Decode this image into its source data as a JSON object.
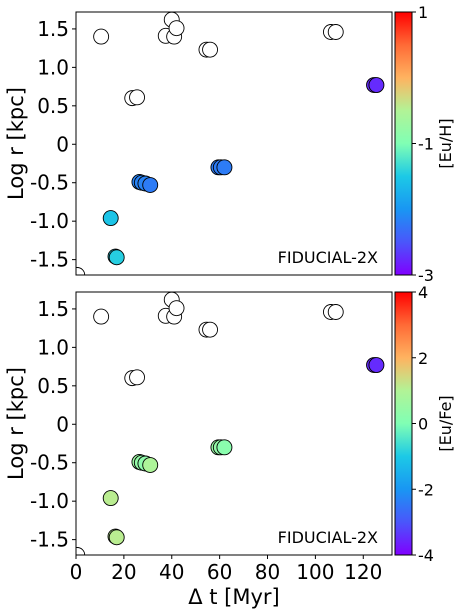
{
  "chart_data": [
    {
      "type": "scatter",
      "annotation": "FIDUCIAL-2X",
      "xlabel": "",
      "ylabel": "Log r [kpc]",
      "xlim": [
        0,
        132
      ],
      "ylim": [
        -1.7,
        1.72
      ],
      "xticks": [],
      "yticks": [
        -1.5,
        -1.0,
        -0.5,
        0.0,
        0.5,
        1.0,
        1.5
      ],
      "ytick_labels": [
        "-1.5",
        "-1.0",
        "-0.5",
        "0",
        "0.5",
        "1.0",
        "1.5"
      ],
      "colorbar": {
        "label": "[Eu/H]",
        "range": [
          -3,
          1
        ],
        "ticks": [
          -3,
          -1,
          1
        ],
        "tick_labels": [
          "-3",
          "-1",
          "1"
        ],
        "colormap": "rainbow"
      },
      "points": [
        {
          "x": 0.5,
          "y": -1.7,
          "c": null
        },
        {
          "x": 10.5,
          "y": 1.4,
          "c": null
        },
        {
          "x": 23.5,
          "y": 0.6,
          "c": null
        },
        {
          "x": 25.5,
          "y": 0.61,
          "c": null
        },
        {
          "x": 37.5,
          "y": 1.41,
          "c": null
        },
        {
          "x": 40.0,
          "y": 1.62,
          "c": null
        },
        {
          "x": 41.0,
          "y": 1.4,
          "c": null
        },
        {
          "x": 42.0,
          "y": 1.51,
          "c": null
        },
        {
          "x": 54.5,
          "y": 1.23,
          "c": null
        },
        {
          "x": 56.0,
          "y": 1.23,
          "c": null
        },
        {
          "x": 106.5,
          "y": 1.46,
          "c": null
        },
        {
          "x": 108.5,
          "y": 1.46,
          "c": null
        },
        {
          "x": 124.5,
          "y": 0.77,
          "c": -2.75
        },
        {
          "x": 125.5,
          "y": 0.77,
          "c": -2.75
        },
        {
          "x": 14.5,
          "y": -0.96,
          "c": -1.55
        },
        {
          "x": 16.5,
          "y": -1.46,
          "c": -1.45
        },
        {
          "x": 17.0,
          "y": -1.47,
          "c": -1.45
        },
        {
          "x": 26.5,
          "y": -0.49,
          "c": -2.15
        },
        {
          "x": 27.5,
          "y": -0.5,
          "c": -2.15
        },
        {
          "x": 29.0,
          "y": -0.51,
          "c": -2.15
        },
        {
          "x": 31.0,
          "y": -0.53,
          "c": -2.2
        },
        {
          "x": 59.5,
          "y": -0.3,
          "c": -2.2
        },
        {
          "x": 60.5,
          "y": -0.3,
          "c": -2.2
        },
        {
          "x": 62.0,
          "y": -0.3,
          "c": -2.2
        }
      ]
    },
    {
      "type": "scatter",
      "annotation": "FIDUCIAL-2X",
      "xlabel": "Δ t [Myr]",
      "ylabel": "Log r [kpc]",
      "xlim": [
        0,
        132
      ],
      "ylim": [
        -1.7,
        1.72
      ],
      "xticks": [
        0,
        20,
        40,
        60,
        80,
        100,
        120
      ],
      "xtick_labels": [
        "0",
        "20",
        "40",
        "60",
        "80",
        "100",
        "120"
      ],
      "yticks": [
        -1.5,
        -1.0,
        -0.5,
        0.0,
        0.5,
        1.0,
        1.5
      ],
      "ytick_labels": [
        "-1.5",
        "-1.0",
        "-0.5",
        "0",
        "0.5",
        "1.0",
        "1.5"
      ],
      "colorbar": {
        "label": "[Eu/Fe]",
        "range": [
          -4,
          4
        ],
        "ticks": [
          -4,
          -2,
          0,
          2,
          4
        ],
        "tick_labels": [
          "-4",
          "-2",
          "0",
          "2",
          "4"
        ],
        "colormap": "rainbow"
      },
      "points": [
        {
          "x": 0.5,
          "y": -1.7,
          "c": null
        },
        {
          "x": 10.5,
          "y": 1.4,
          "c": null
        },
        {
          "x": 23.5,
          "y": 0.6,
          "c": null
        },
        {
          "x": 25.5,
          "y": 0.61,
          "c": null
        },
        {
          "x": 37.5,
          "y": 1.41,
          "c": null
        },
        {
          "x": 40.0,
          "y": 1.62,
          "c": null
        },
        {
          "x": 41.0,
          "y": 1.4,
          "c": null
        },
        {
          "x": 42.0,
          "y": 1.51,
          "c": null
        },
        {
          "x": 54.5,
          "y": 1.23,
          "c": null
        },
        {
          "x": 56.0,
          "y": 1.23,
          "c": null
        },
        {
          "x": 106.5,
          "y": 1.46,
          "c": null
        },
        {
          "x": 108.5,
          "y": 1.46,
          "c": null
        },
        {
          "x": 124.5,
          "y": 0.77,
          "c": -3.5
        },
        {
          "x": 125.5,
          "y": 0.77,
          "c": -3.5
        },
        {
          "x": 14.5,
          "y": -0.96,
          "c": 1.1
        },
        {
          "x": 16.5,
          "y": -1.46,
          "c": 1.1
        },
        {
          "x": 17.0,
          "y": -1.47,
          "c": 1.1
        },
        {
          "x": 26.5,
          "y": -0.49,
          "c": 0.6
        },
        {
          "x": 27.5,
          "y": -0.5,
          "c": 0.4
        },
        {
          "x": 29.0,
          "y": -0.51,
          "c": 0.3
        },
        {
          "x": 31.0,
          "y": -0.53,
          "c": 0.9
        },
        {
          "x": 59.5,
          "y": -0.3,
          "c": 0.5
        },
        {
          "x": 60.5,
          "y": -0.3,
          "c": 0.4
        },
        {
          "x": 62.0,
          "y": -0.3,
          "c": 0.2
        }
      ]
    }
  ]
}
